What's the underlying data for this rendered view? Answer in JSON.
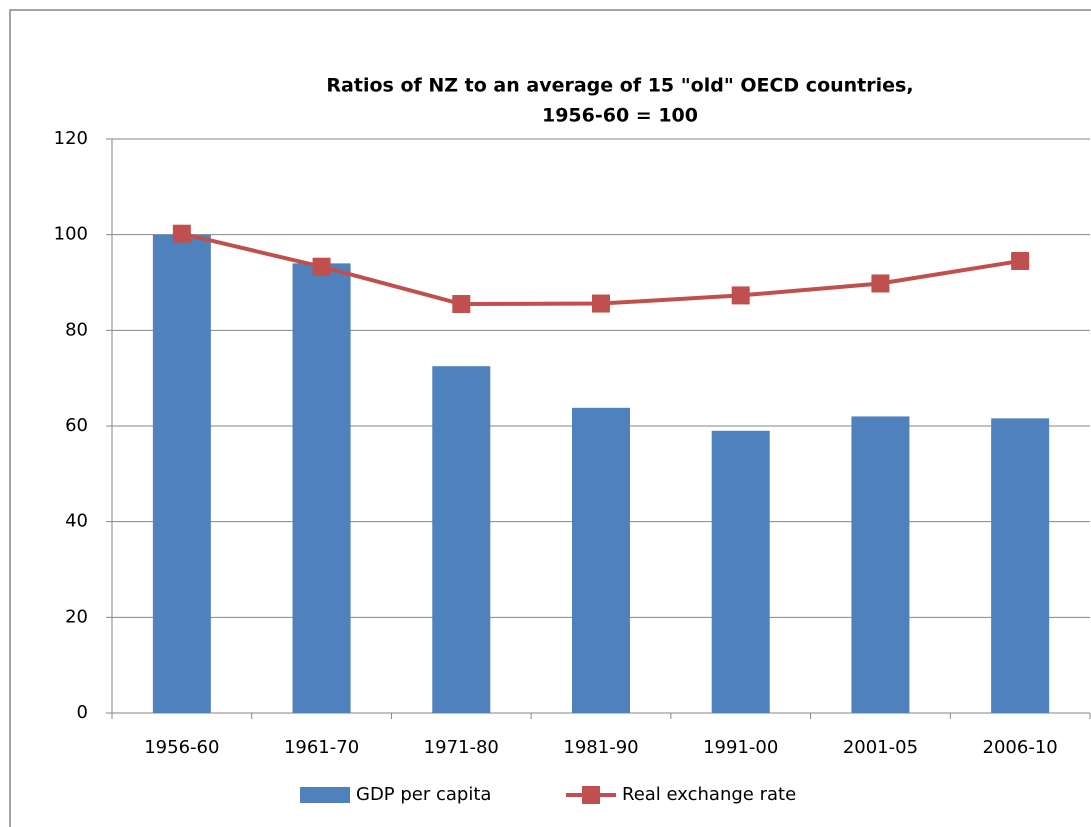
{
  "chart_data": {
    "type": "bar",
    "title": [
      "Ratios of NZ to an average of 15 \"old\" OECD countries,",
      "1956-60 = 100"
    ],
    "categories": [
      "1956-60",
      "1961-70",
      "1971-80",
      "1981-90",
      "1991-00",
      "2001-05",
      "2006-10"
    ],
    "series": [
      {
        "name": "GDP per capita",
        "type": "bar",
        "color": "#4f81bd",
        "values": [
          100,
          94,
          72.5,
          63.8,
          59,
          62,
          61.6
        ]
      },
      {
        "name": "Real exchange rate",
        "type": "line",
        "color": "#c0504d",
        "values": [
          100.2,
          93.3,
          85.5,
          85.6,
          87.3,
          89.8,
          94.5
        ]
      }
    ],
    "ylim": [
      0,
      120
    ],
    "yticks": [
      0,
      20,
      40,
      60,
      80,
      100,
      120
    ],
    "grid": true,
    "legend": "bottom"
  }
}
